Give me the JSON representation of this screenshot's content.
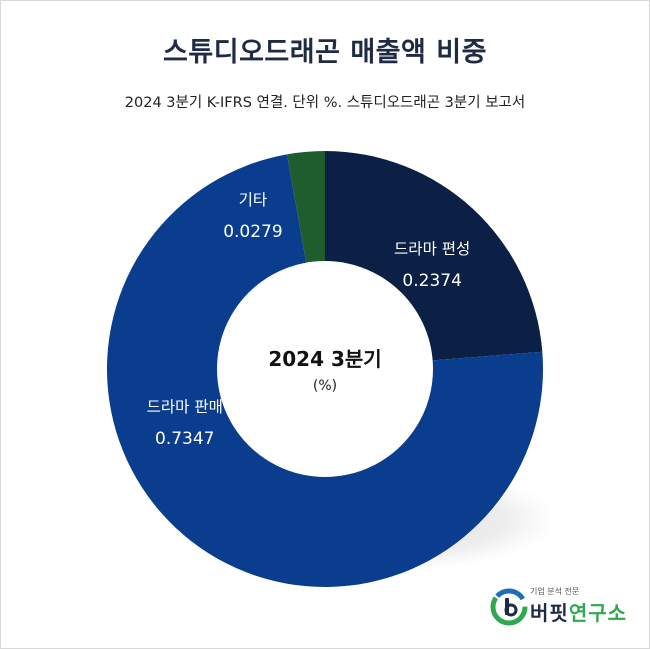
{
  "header": {
    "title": "스튜디오드래곤 매출액 비중",
    "subtitle": "2024 3분기 K-IFRS 연결. 단위 %. 스튜디오드래곤 3분기 보고서"
  },
  "center": {
    "title": "2024 3분기",
    "sub": "(%)"
  },
  "chart_data": {
    "type": "pie",
    "title": "스튜디오드래곤 매출액 비중",
    "slices": [
      {
        "label": "드라마 편성",
        "value": 0.2374,
        "display": "0.2374",
        "color": "#0c1f45"
      },
      {
        "label": "드라마 판매",
        "value": 0.7347,
        "display": "0.7347",
        "color": "#0b3d8f"
      },
      {
        "label": "기타",
        "value": 0.0279,
        "display": "0.0279",
        "color": "#1f5c2e"
      }
    ]
  },
  "logo": {
    "small": "기업 분석 전문",
    "name_a": "버핏",
    "name_b": "연구소"
  }
}
